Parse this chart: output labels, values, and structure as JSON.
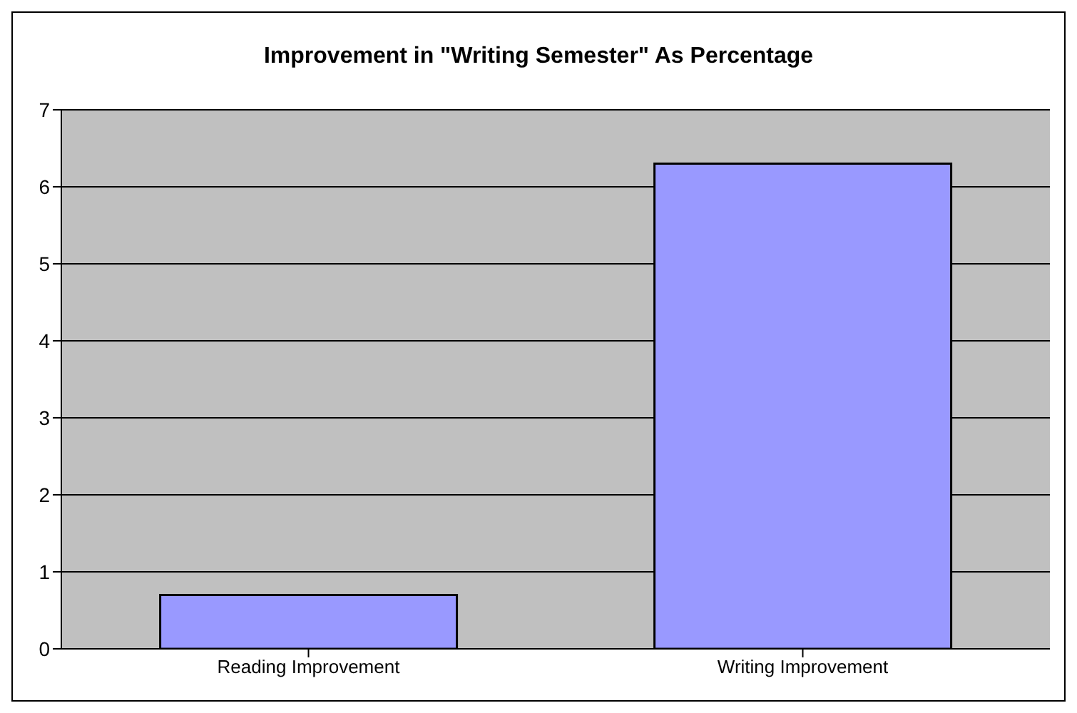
{
  "chart_data": {
    "type": "bar",
    "title": "Improvement in \"Writing Semester\" As Percentage",
    "categories": [
      "Reading Improvement",
      "Writing Improvement"
    ],
    "values": [
      0.7,
      6.3
    ],
    "color": "#9999ff",
    "ylim": [
      0,
      7
    ],
    "yticks": [
      0,
      1,
      2,
      3,
      4,
      5,
      6,
      7
    ],
    "grid": "y"
  }
}
